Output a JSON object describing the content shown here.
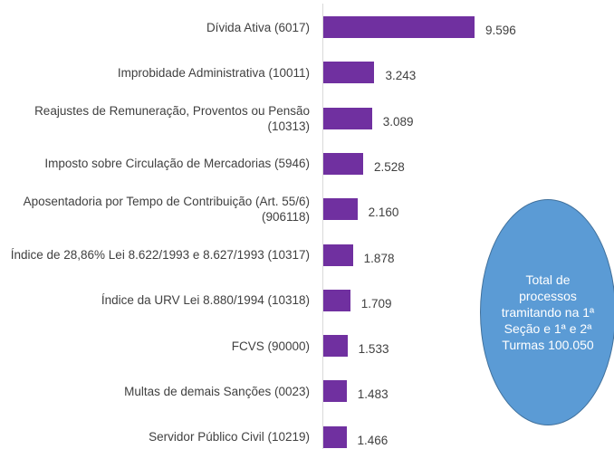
{
  "chart_data": {
    "type": "bar",
    "orientation": "horizontal",
    "categories": [
      "Dívida Ativa (6017)",
      "Improbidade Administrativa (10011)",
      "Reajustes de Remuneração, Proventos ou Pensão (10313)",
      "Imposto sobre Circulação de Mercadorias (5946)",
      "Aposentadoria por Tempo de Contribuição (Art. 55/6) (906118)",
      "Índice de 28,86% Lei 8.622/1993 e 8.627/1993 (10317)",
      "Índice da URV Lei 8.880/1994 (10318)",
      "FCVS (90000)",
      "Multas de demais Sanções (0023)",
      "Servidor Público Civil (10219)"
    ],
    "values": [
      9596,
      3243,
      3089,
      2528,
      2160,
      1878,
      1709,
      1533,
      1483,
      1466
    ],
    "value_labels": [
      "9.596",
      "3.243",
      "3.089",
      "2.528",
      "2.160",
      "1.878",
      "1.709",
      "1.533",
      "1.483",
      "1.466"
    ],
    "color": "#7030a0",
    "annotation": "Total de processos tramitando na 1ª Seção e 1ª e 2ª Turmas 100.050"
  }
}
